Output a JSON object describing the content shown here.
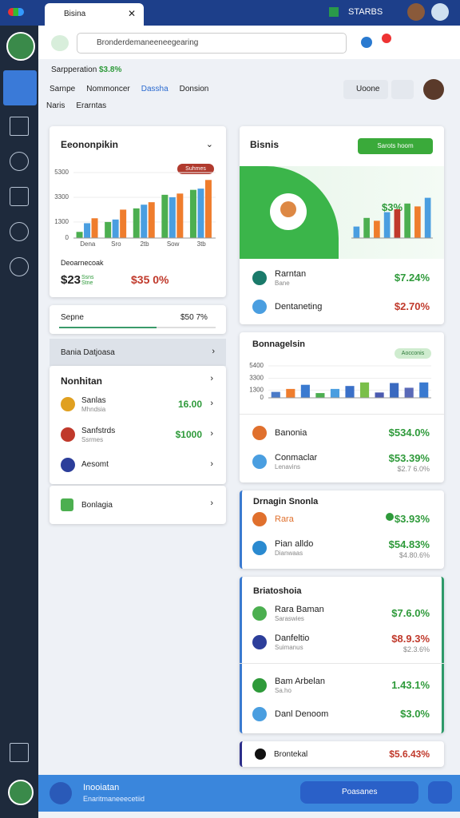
{
  "browser": {
    "tab": "Bisina",
    "status": "STARBS"
  },
  "search": {
    "placeholder": "Bronderdemaneeneegearing"
  },
  "header": {
    "summary": "Sarpperation",
    "summary_value": "$3.8%",
    "tabs": [
      "Sarnpe",
      "Nommoncer",
      "Dassha",
      "Donsion"
    ],
    "subtabs": [
      "Naris",
      "Erarntas"
    ],
    "button": "Uoone"
  },
  "economy": {
    "title": "Eeononpikin",
    "pill": "Suhmes",
    "chart": {
      "type": "bar",
      "categories": [
        "Dena",
        "Sro",
        "2tb",
        "Sow",
        "3tb"
      ],
      "ylim": [
        0,
        5300
      ],
      "yticks": [
        0,
        1300,
        3300,
        5300
      ],
      "series": [
        {
          "color": "#4caf50",
          "values": [
            500,
            1300,
            2400,
            3500,
            3900
          ]
        },
        {
          "color": "#4a9ee0",
          "values": [
            1200,
            1500,
            2700,
            3300,
            4000
          ]
        },
        {
          "color": "#ef7d2d",
          "values": [
            1600,
            2300,
            2900,
            3600,
            4700
          ]
        }
      ]
    },
    "footer_label": "Deoarnecoak",
    "amount": "$23",
    "amount_note": "Ssns Stne",
    "change": "$35 0%"
  },
  "progress": {
    "label": "Sepne",
    "value": "$50 7%"
  },
  "section": {
    "title": "Bania Datjoasa"
  },
  "list": {
    "title": "Nonhitan",
    "items": [
      {
        "label": "Sanlas",
        "sub": "Mhndsia",
        "value": "16.00",
        "icon": "#e0a020"
      },
      {
        "label": "Sanfstrds",
        "sub": "Ssrmes",
        "value": "$1000",
        "icon": "#c0392b"
      },
      {
        "label": "Aesomt",
        "icon": "#2c3e9a"
      }
    ],
    "extra": {
      "label": "Bonlagia",
      "icon": "#4caf50"
    }
  },
  "bisnis": {
    "title": "Bisnis",
    "button": "Sarots hoom",
    "chart_label": "$3%",
    "chart": {
      "type": "bar",
      "ylim": [
        0,
        1000
      ],
      "values": [
        200,
        350,
        300,
        450,
        500,
        600,
        550,
        700
      ],
      "colors": [
        "#4a9ee0",
        "#4caf50",
        "#ef7d2d",
        "#4a9ee0",
        "#c0392b",
        "#4caf50",
        "#ef7d2d",
        "#4a9ee0"
      ]
    },
    "rows": [
      {
        "label": "Rarntan",
        "sub": "Bane",
        "value": "$7.24%",
        "icon": "#1a7a6a",
        "color": "#2e9a3a"
      },
      {
        "label": "Dentaneting",
        "value": "$2.70%",
        "icon": "#4a9ee0",
        "color": "#c0392b"
      }
    ]
  },
  "campaign": {
    "title": "Bonnagelsin",
    "pill": "Aocconis",
    "chart": {
      "type": "bar",
      "ylim": [
        0,
        5400
      ],
      "yticks": [
        0,
        1300,
        3300,
        5400
      ],
      "values": [
        1000,
        1500,
        2200,
        800,
        1500,
        2000,
        2600,
        900,
        2500,
        1700,
        2600
      ],
      "colors": [
        "#4a7ac8",
        "#ef7d2d",
        "#3a7ad0",
        "#4caf50",
        "#4a9ee0",
        "#3a70c8",
        "#7abf4a",
        "#4a5ab0",
        "#3a6ac0",
        "#5a6ab8",
        "#3a7ad0"
      ]
    },
    "rows": [
      {
        "label": "Banonia",
        "value": "$534.0%",
        "icon": "#e0702d",
        "color": "#2e9a3a"
      },
      {
        "label": "Conmaclar",
        "sub": "Lenavins",
        "value": "$53.39%",
        "value_sub": "$2.7 6.0%",
        "icon": "#4a9ee0",
        "color": "#2e9a3a"
      }
    ]
  },
  "design": {
    "title": "Drnagin Snonla",
    "rows": [
      {
        "label": "Rara",
        "value": "$3.93%",
        "icon": "#e0702d",
        "color": "#2e9a3a",
        "label_color": "#e0702d"
      },
      {
        "label": "Pian alldo",
        "sub": "Dianwaas",
        "value": "$54.83%",
        "value_sub": "$4.80.6%",
        "icon": "#2a8ad0",
        "color": "#2e9a3a"
      }
    ]
  },
  "brand": {
    "title": "Briatoshoia",
    "rows": [
      {
        "label": "Rara Baman",
        "sub": "Saraswies",
        "value": "$7.6.0%",
        "icon": "#4caf50",
        "color": "#2e9a3a"
      },
      {
        "label": "Danfeltio",
        "sub": "Suimanus",
        "value": "$8.9.3%",
        "value_sub": "$2.3.6%",
        "icon": "#2c3e9a",
        "color": "#c0392b"
      },
      {
        "label": "Bam Arbelan",
        "sub": "Sa.ho",
        "value": "1.43.1%",
        "icon": "#2e9a3a",
        "color": "#2e9a3a"
      },
      {
        "label": "Danl Denoom",
        "value": "$3.0%",
        "icon": "#4a9ee0",
        "color": "#2e9a3a"
      }
    ]
  },
  "total": {
    "label": "Brontekal",
    "value": "$5.6.43%",
    "color": "#c0392b"
  },
  "footer": {
    "title": "Inooiatan",
    "sub": "Enaritmaneeecetiid",
    "button": "Poasanes"
  }
}
